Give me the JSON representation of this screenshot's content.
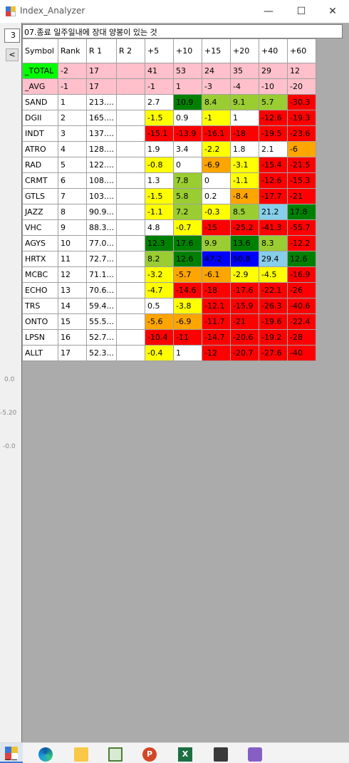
{
  "window": {
    "title": "Index_Analyzer",
    "min_glyph": "—",
    "max_glyph": "☐",
    "close_glyph": "✕"
  },
  "left": {
    "combo_value": "3",
    "nav_glyph": "<",
    "axis_labels": [
      "0.0",
      "-5.20",
      "-0.0"
    ]
  },
  "header_text": "07.종료 일주일내에 장대 양봉이 있는 것",
  "columns": [
    "Symbol",
    "Rank",
    "R 1",
    "R 2",
    "+5",
    "+10",
    "+15",
    "+20",
    "+40",
    "+60"
  ],
  "colors": {
    "green": "#008000",
    "yellowgreen": "#9acd32",
    "yellow": "#ffff00",
    "orange": "#ffa500",
    "red": "#ff0000",
    "lightblue": "#87ceeb",
    "blue": "#0000ff",
    "white": "#ffffff",
    "pink": "#ffc0cb",
    "lime": "#00ff00"
  },
  "rows": [
    {
      "kind": "total",
      "symbol": "_TOTAL",
      "rank": "-2",
      "r1": "17",
      "r2": "",
      "vals": [
        "41",
        "53",
        "24",
        "35",
        "29",
        "12"
      ],
      "cols": [
        "pink",
        "pink",
        "pink",
        "pink",
        "pink",
        "pink"
      ]
    },
    {
      "kind": "avg",
      "symbol": "_AVG",
      "rank": "-1",
      "r1": "17",
      "r2": "",
      "vals": [
        "-1",
        "1",
        "-3",
        "-4",
        "-10",
        "-20"
      ],
      "cols": [
        "pink",
        "pink",
        "pink",
        "pink",
        "pink",
        "pink"
      ]
    },
    {
      "kind": "data",
      "symbol": "SAND",
      "rank": "1",
      "r1": "213....",
      "r2": "",
      "vals": [
        "2.7",
        "10.9",
        "8.4",
        "9.1",
        "5.7",
        "-30.3"
      ],
      "cols": [
        "white",
        "green",
        "yellowgreen",
        "yellowgreen",
        "yellowgreen",
        "red"
      ]
    },
    {
      "kind": "data",
      "symbol": "DGII",
      "rank": "2",
      "r1": "165....",
      "r2": "",
      "vals": [
        "-1.5",
        "0.9",
        "-1",
        "1",
        "-12.6",
        "-19.3"
      ],
      "cols": [
        "yellow",
        "white",
        "yellow",
        "white",
        "red",
        "red"
      ]
    },
    {
      "kind": "data",
      "symbol": "INDT",
      "rank": "3",
      "r1": "137....",
      "r2": "",
      "vals": [
        "-15.1",
        "-13.9",
        "-16.1",
        "-18",
        "-19.5",
        "-23.6"
      ],
      "cols": [
        "red",
        "red",
        "red",
        "red",
        "red",
        "red"
      ]
    },
    {
      "kind": "data",
      "symbol": "ATRO",
      "rank": "4",
      "r1": "128....",
      "r2": "",
      "vals": [
        "1.9",
        "3.4",
        "-2.2",
        "1.8",
        "2.1",
        "-6"
      ],
      "cols": [
        "white",
        "white",
        "yellow",
        "white",
        "white",
        "orange"
      ]
    },
    {
      "kind": "data",
      "symbol": "RAD",
      "rank": "5",
      "r1": "122....",
      "r2": "",
      "vals": [
        "-0.8",
        "0",
        "-6.9",
        "-3.1",
        "-15.4",
        "-21.5"
      ],
      "cols": [
        "yellow",
        "white",
        "orange",
        "yellow",
        "red",
        "red"
      ]
    },
    {
      "kind": "data",
      "symbol": "CRMT",
      "rank": "6",
      "r1": "108....",
      "r2": "",
      "vals": [
        "1.3",
        "7.8",
        "0",
        "-1.1",
        "-12.6",
        "-15.3"
      ],
      "cols": [
        "white",
        "yellowgreen",
        "white",
        "yellow",
        "red",
        "red"
      ]
    },
    {
      "kind": "data",
      "symbol": "GTLS",
      "rank": "7",
      "r1": "103....",
      "r2": "",
      "vals": [
        "-1.5",
        "5.8",
        "0.2",
        "-8.4",
        "-17.7",
        "-21"
      ],
      "cols": [
        "yellow",
        "yellowgreen",
        "white",
        "orange",
        "red",
        "red"
      ]
    },
    {
      "kind": "data",
      "symbol": "JAZZ",
      "rank": "8",
      "r1": "90.9...",
      "r2": "",
      "vals": [
        "-1.1",
        "7.2",
        "-0.3",
        "8.5",
        "21.2",
        "17.8"
      ],
      "cols": [
        "yellow",
        "yellowgreen",
        "yellow",
        "yellowgreen",
        "lightblue",
        "green"
      ]
    },
    {
      "kind": "data",
      "symbol": "VHC",
      "rank": "9",
      "r1": "88.3...",
      "r2": "",
      "vals": [
        "4.8",
        "-0.7",
        "-15",
        "-25.2",
        "-41.3",
        "-55.7"
      ],
      "cols": [
        "white",
        "yellow",
        "red",
        "red",
        "red",
        "red"
      ]
    },
    {
      "kind": "data",
      "symbol": "AGYS",
      "rank": "10",
      "r1": "77.0...",
      "r2": "",
      "vals": [
        "12.3",
        "17.6",
        "9.9",
        "13.6",
        "8.3",
        "-12.2"
      ],
      "cols": [
        "green",
        "green",
        "yellowgreen",
        "green",
        "yellowgreen",
        "red"
      ]
    },
    {
      "kind": "data",
      "symbol": "HRTX",
      "rank": "11",
      "r1": "72.7...",
      "r2": "",
      "vals": [
        "8.2",
        "12.6",
        "47.2",
        "50.8",
        "29.4",
        "12.6"
      ],
      "cols": [
        "yellowgreen",
        "green",
        "blue",
        "blue",
        "lightblue",
        "green"
      ]
    },
    {
      "kind": "data",
      "symbol": "MCBC",
      "rank": "12",
      "r1": "71.1...",
      "r2": "",
      "vals": [
        "-3.2",
        "-5.7",
        "-6.1",
        "-2.9",
        "-4.5",
        "-16.9"
      ],
      "cols": [
        "yellow",
        "orange",
        "orange",
        "yellow",
        "yellow",
        "red"
      ]
    },
    {
      "kind": "data",
      "symbol": "ECHO",
      "rank": "13",
      "r1": "70.6...",
      "r2": "",
      "vals": [
        "-4.7",
        "-14.6",
        "-18",
        "-17.6",
        "-22.1",
        "-26"
      ],
      "cols": [
        "yellow",
        "red",
        "red",
        "red",
        "red",
        "red"
      ]
    },
    {
      "kind": "data",
      "symbol": "TRS",
      "rank": "14",
      "r1": "59.4...",
      "r2": "",
      "vals": [
        "0.5",
        "-3.8",
        "-12.1",
        "-15.9",
        "-26.3",
        "-40.6"
      ],
      "cols": [
        "white",
        "yellow",
        "red",
        "red",
        "red",
        "red"
      ]
    },
    {
      "kind": "data",
      "symbol": "ONTO",
      "rank": "15",
      "r1": "55.5...",
      "r2": "",
      "vals": [
        "-5.6",
        "-6.9",
        "-11.7",
        "-21",
        "-19.6",
        "-22.4"
      ],
      "cols": [
        "orange",
        "orange",
        "red",
        "red",
        "red",
        "red"
      ]
    },
    {
      "kind": "data",
      "symbol": "LPSN",
      "rank": "16",
      "r1": "52.7...",
      "r2": "",
      "vals": [
        "-10.4",
        "-11",
        "-14.7",
        "-20.6",
        "-19.2",
        "-28"
      ],
      "cols": [
        "red",
        "red",
        "red",
        "red",
        "red",
        "red"
      ]
    },
    {
      "kind": "data",
      "symbol": "ALLT",
      "rank": "17",
      "r1": "52.3...",
      "r2": "",
      "vals": [
        "-0.4",
        "1",
        "-12",
        "-20.7",
        "-27.6",
        "-40"
      ],
      "cols": [
        "yellow",
        "white",
        "red",
        "red",
        "red",
        "red"
      ]
    }
  ],
  "taskbar": {
    "ppt_letter": "P",
    "excel_letter": "X"
  }
}
